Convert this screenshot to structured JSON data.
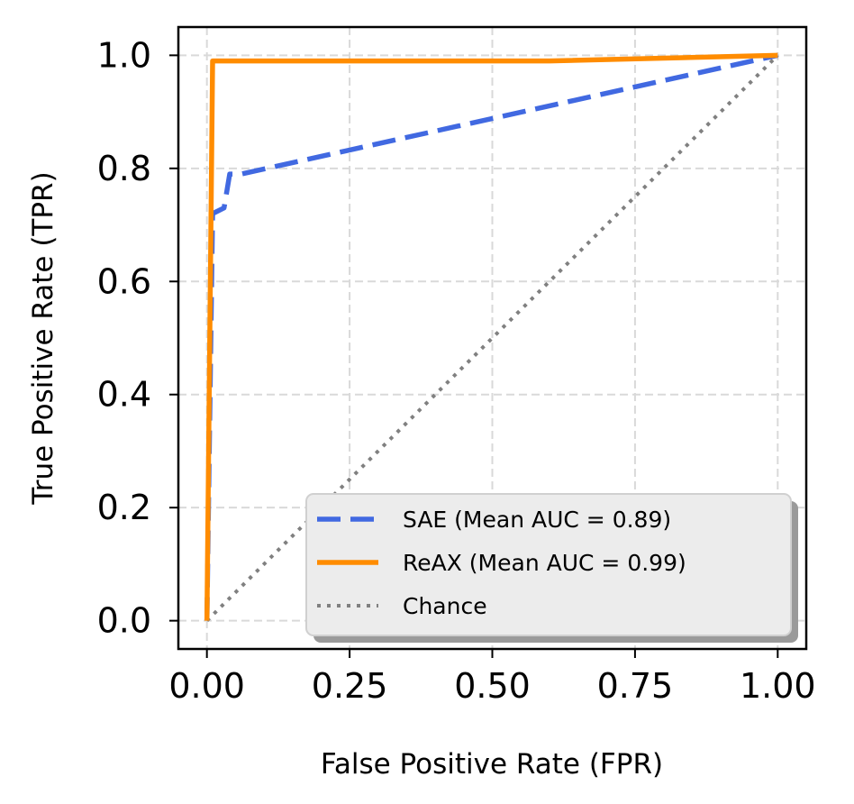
{
  "chart_data": {
    "type": "line",
    "title": "",
    "xlabel": "False Positive Rate (FPR)",
    "ylabel": "True Positive Rate (TPR)",
    "xlim": [
      -0.05,
      1.05
    ],
    "ylim": [
      -0.05,
      1.05
    ],
    "xticks": [
      0.0,
      0.25,
      0.5,
      0.75,
      1.0
    ],
    "xtick_labels": [
      "0.00",
      "0.25",
      "0.50",
      "0.75",
      "1.00"
    ],
    "yticks": [
      0.0,
      0.2,
      0.4,
      0.6,
      0.8,
      1.0
    ],
    "ytick_labels": [
      "0.0",
      "0.2",
      "0.4",
      "0.6",
      "0.8",
      "1.0"
    ],
    "grid": true,
    "legend_position": "lower-right",
    "series": [
      {
        "name": "SAE (Mean AUC = 0.89)",
        "color": "#4169E1",
        "style": "dashed",
        "x": [
          0.0,
          0.01,
          0.03,
          0.04,
          0.06,
          1.0
        ],
        "y": [
          0.0,
          0.72,
          0.73,
          0.79,
          0.79,
          1.0
        ]
      },
      {
        "name": "ReAX (Mean AUC = 0.99)",
        "color": "#FF8C00",
        "style": "solid",
        "x": [
          0.0,
          0.01,
          0.6,
          1.0
        ],
        "y": [
          0.0,
          0.99,
          0.99,
          1.0
        ]
      },
      {
        "name": "Chance",
        "color": "#808080",
        "style": "dotted",
        "x": [
          0.0,
          1.0
        ],
        "y": [
          0.0,
          1.0
        ]
      }
    ]
  }
}
